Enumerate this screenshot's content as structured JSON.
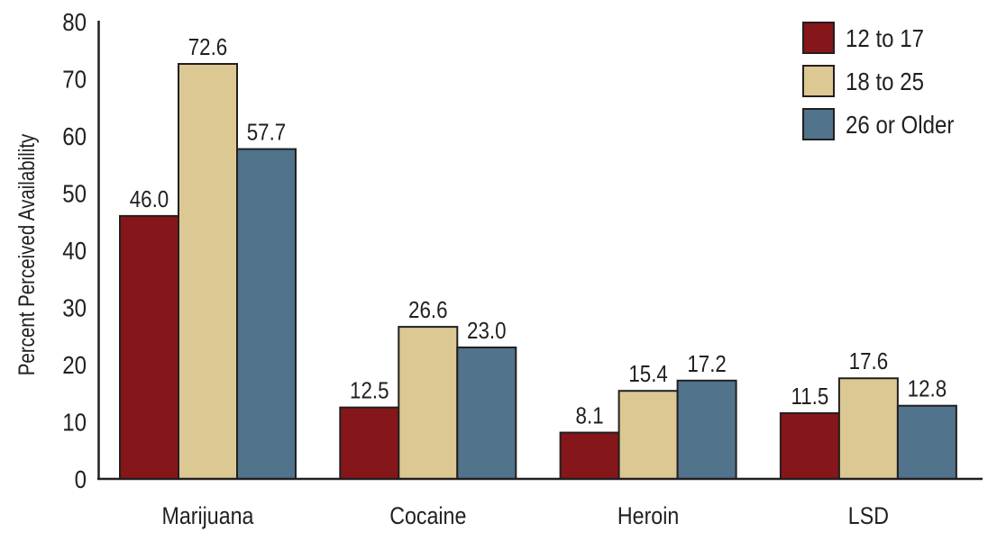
{
  "chart_data": {
    "type": "bar",
    "title": "",
    "xlabel": "",
    "ylabel": "Percent Perceived Availability",
    "ylim": [
      0,
      80
    ],
    "yticks": [
      0,
      10,
      20,
      30,
      40,
      50,
      60,
      70,
      80
    ],
    "grid": false,
    "legend_position": "top-right",
    "categories": [
      "Marijuana",
      "Cocaine",
      "Heroin",
      "LSD"
    ],
    "series": [
      {
        "name": "12 to 17",
        "color": "#85161a",
        "values": [
          46.0,
          12.5,
          8.1,
          11.5
        ],
        "labels": [
          "46.0",
          "12.5",
          "8.1",
          "11.5"
        ]
      },
      {
        "name": "18 to 25",
        "color": "#dcc893",
        "values": [
          72.6,
          26.6,
          15.4,
          17.6
        ],
        "labels": [
          "72.6",
          "26.6",
          "15.4",
          "17.6"
        ]
      },
      {
        "name": "26 or Older",
        "color": "#51738c",
        "values": [
          57.7,
          23.0,
          17.2,
          12.8
        ],
        "labels": [
          "57.7",
          "23.0",
          "17.2",
          "12.8"
        ]
      }
    ]
  }
}
